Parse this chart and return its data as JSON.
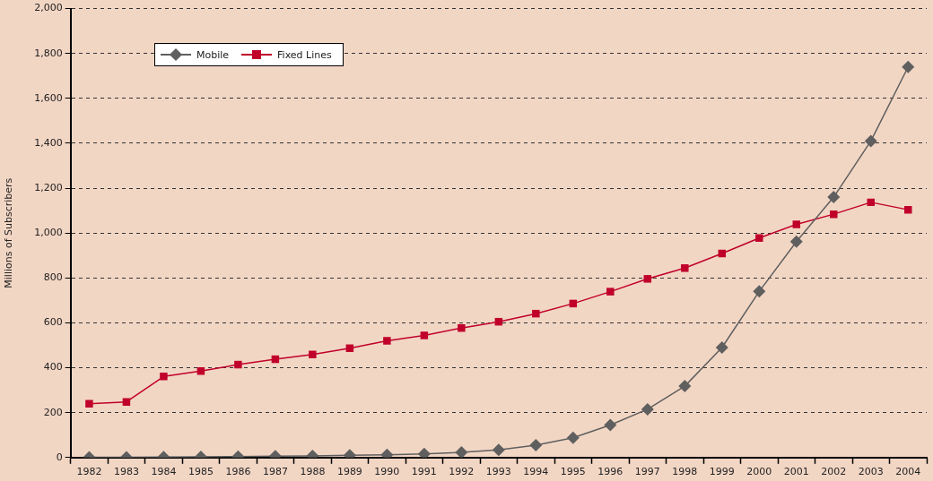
{
  "chart_data": {
    "type": "line",
    "ylabel": "Millions of Subscribers",
    "categories": [
      "1982",
      "1983",
      "1984",
      "1985",
      "1986",
      "1987",
      "1988",
      "1989",
      "1990",
      "1991",
      "1992",
      "1993",
      "1994",
      "1995",
      "1996",
      "1997",
      "1998",
      "1999",
      "2000",
      "2001",
      "2002",
      "2003",
      "2004"
    ],
    "series": [
      {
        "name": "Mobile",
        "color": "#5f5f5f",
        "marker": "diamond",
        "values": [
          1,
          1,
          2,
          3,
          4,
          6,
          7,
          10,
          12,
          16,
          23,
          34,
          55,
          88,
          145,
          215,
          318,
          490,
          740,
          962,
          1160,
          1410,
          1740
        ]
      },
      {
        "name": "Fixed Lines",
        "color": "#c0002a",
        "marker": "square",
        "values": [
          240,
          248,
          361,
          385,
          414,
          438,
          459,
          487,
          520,
          544,
          577,
          605,
          641,
          686,
          739,
          796,
          844,
          909,
          978,
          1039,
          1084,
          1137,
          1104
        ]
      }
    ],
    "ylim": [
      0,
      2000
    ],
    "yticks": [
      {
        "value": 0,
        "label": "0"
      },
      {
        "value": 200,
        "label": "200"
      },
      {
        "value": 400,
        "label": "400"
      },
      {
        "value": 600,
        "label": "600"
      },
      {
        "value": 800,
        "label": "800"
      },
      {
        "value": 1000,
        "label": "1,000"
      },
      {
        "value": 1200,
        "label": "1,200"
      },
      {
        "value": 1400,
        "label": "1,400"
      },
      {
        "value": 1600,
        "label": "1,600"
      },
      {
        "value": 1800,
        "label": "1,800"
      },
      {
        "value": 2000,
        "label": "2,000"
      }
    ],
    "grid": "y",
    "legend": "top left",
    "line_style": "solid"
  }
}
